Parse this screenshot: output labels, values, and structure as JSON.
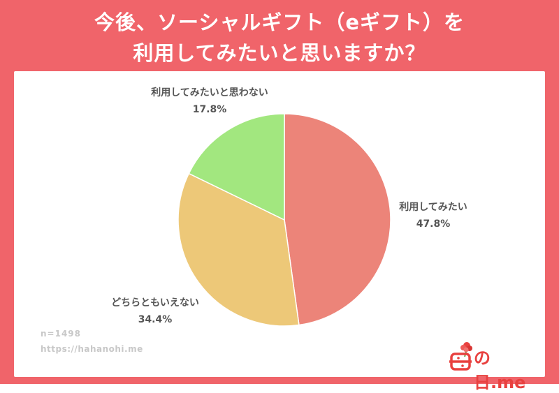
{
  "title_line1": "今後、ソーシャルギフト（eギフト）を",
  "title_line2": "利用してみたいと思いますか？",
  "chart_data": {
    "type": "pie",
    "title": "今後、ソーシャルギフト（eギフト）を利用してみたいと思いますか？",
    "slices": [
      {
        "label": "利用してみたい",
        "value": 47.8,
        "value_label": "47.8%",
        "color": "#ec8479"
      },
      {
        "label": "どちらともいえない",
        "value": 34.4,
        "value_label": "34.4%",
        "color": "#edc878"
      },
      {
        "label": "利用してみたいと思わない",
        "value": 17.8,
        "value_label": "17.8%",
        "color": "#a2e77f"
      }
    ],
    "start_angle": "12 o'clock",
    "direction": "clockwise"
  },
  "footer": {
    "sample": "n=1498",
    "url": "https://hahanohi.me"
  },
  "logo": {
    "text": "の日.me",
    "icon": "carnation-flower-icon",
    "color": "#e8413f"
  },
  "colors": {
    "frame": "#f0646a",
    "panel": "#ffffff",
    "label_text": "#555555",
    "footer_text": "#c8c8c8"
  }
}
